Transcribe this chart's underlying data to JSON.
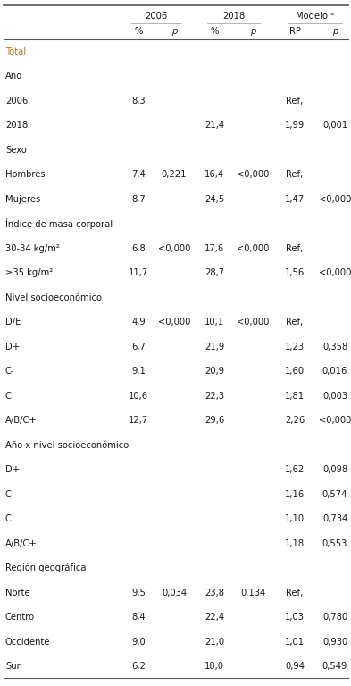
{
  "col_headers_row1_labels": [
    "2006",
    "2018",
    "Modelo ᵃ"
  ],
  "col_headers_row2": [
    "%",
    "p",
    "%",
    "p",
    "RP",
    "p"
  ],
  "rows": [
    {
      "label": "Total",
      "type": "section",
      "color": "#d4721a",
      "vals": [
        "",
        "",
        "",
        "",
        "",
        ""
      ]
    },
    {
      "label": "Año",
      "type": "section",
      "color": "#000000",
      "vals": [
        "",
        "",
        "",
        "",
        "",
        ""
      ]
    },
    {
      "label": "2006",
      "type": "data",
      "vals": [
        "8,3",
        "",
        "",
        "",
        "Ref,",
        ""
      ]
    },
    {
      "label": "2018",
      "type": "data",
      "vals": [
        "",
        "",
        "21,4",
        "",
        "1,99",
        "0,001"
      ]
    },
    {
      "label": "Sexo",
      "type": "section",
      "color": "#000000",
      "vals": [
        "",
        "",
        "",
        "",
        "",
        ""
      ]
    },
    {
      "label": "Hombres",
      "type": "data",
      "vals": [
        "7,4",
        "0,221",
        "16,4",
        "<0,000",
        "Ref,",
        ""
      ]
    },
    {
      "label": "Mujeres",
      "type": "data",
      "vals": [
        "8,7",
        "",
        "24,5",
        "",
        "1,47",
        "<0,000"
      ]
    },
    {
      "label": "Índice de masa corporal",
      "type": "section",
      "color": "#000000",
      "vals": [
        "",
        "",
        "",
        "",
        "",
        ""
      ]
    },
    {
      "label": "30-34 kg/m²",
      "type": "data",
      "vals": [
        "6,8",
        "<0,000",
        "17,6",
        "<0,000",
        "Ref,",
        ""
      ]
    },
    {
      "label": "≥35 kg/m²",
      "type": "data",
      "vals": [
        "11,7",
        "",
        "28,7",
        "",
        "1,56",
        "<0,000"
      ]
    },
    {
      "label": "Nivel socioeconómico",
      "type": "section",
      "color": "#000000",
      "vals": [
        "",
        "",
        "",
        "",
        "",
        ""
      ]
    },
    {
      "label": "D/E",
      "type": "data",
      "vals": [
        "4,9",
        "<0,000",
        "10,1",
        "<0,000",
        "Ref,",
        ""
      ]
    },
    {
      "label": "D+",
      "type": "data",
      "vals": [
        "6,7",
        "",
        "21,9",
        "",
        "1,23",
        "0,358"
      ]
    },
    {
      "label": "C-",
      "type": "data",
      "vals": [
        "9,1",
        "",
        "20,9",
        "",
        "1,60",
        "0,016"
      ]
    },
    {
      "label": "C",
      "type": "data",
      "vals": [
        "10,6",
        "",
        "22,3",
        "",
        "1,81",
        "0,003"
      ]
    },
    {
      "label": "A/B/C+",
      "type": "data",
      "vals": [
        "12,7",
        "",
        "29,6",
        "",
        "2,26",
        "<0,000"
      ]
    },
    {
      "label": "Año x nivel socioeconómico",
      "type": "section",
      "color": "#000000",
      "vals": [
        "",
        "",
        "",
        "",
        "",
        ""
      ]
    },
    {
      "label": "D+",
      "type": "data",
      "vals": [
        "",
        "",
        "",
        "",
        "1,62",
        "0,098"
      ]
    },
    {
      "label": "C-",
      "type": "data",
      "vals": [
        "",
        "",
        "",
        "",
        "1,16",
        "0,574"
      ]
    },
    {
      "label": "C",
      "type": "data",
      "vals": [
        "",
        "",
        "",
        "",
        "1,10",
        "0,734"
      ]
    },
    {
      "label": "A/B/C+",
      "type": "data",
      "vals": [
        "",
        "",
        "",
        "",
        "1,18",
        "0,553"
      ]
    },
    {
      "label": "Región geográfica",
      "type": "section",
      "color": "#000000",
      "vals": [
        "",
        "",
        "",
        "",
        "",
        ""
      ]
    },
    {
      "label": "Norte",
      "type": "data",
      "vals": [
        "9,5",
        "0,034",
        "23,8",
        "0,134",
        "Ref,",
        ""
      ]
    },
    {
      "label": "Centro",
      "type": "data",
      "vals": [
        "8,4",
        "",
        "22,4",
        "",
        "1,03",
        "0,780"
      ]
    },
    {
      "label": "Occidente",
      "type": "data",
      "vals": [
        "9,0",
        "",
        "21,0",
        "",
        "1,01",
        "0,930"
      ]
    },
    {
      "label": "Sur",
      "type": "data",
      "vals": [
        "6,2",
        "",
        "18,0",
        "",
        "0,94",
        "0,549"
      ]
    }
  ],
  "bg_color": "#ffffff",
  "text_color": "#1a1a1a",
  "total_color": "#d4721a",
  "line_color": "#aaaaaa",
  "thick_line_color": "#555555",
  "font_size": 7.2
}
